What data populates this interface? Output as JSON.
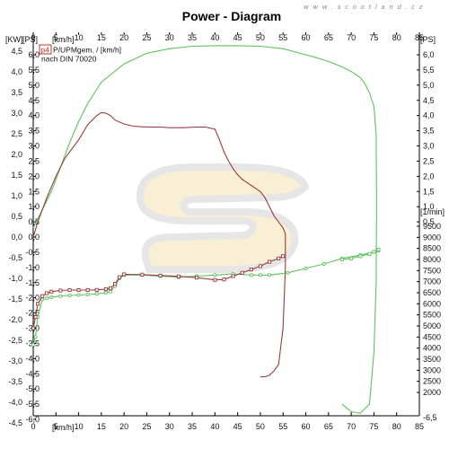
{
  "chart_data": {
    "type": "line",
    "title": "Power - Diagram",
    "watermark": "w w w . s c o o t l a n d . c z",
    "legend": {
      "badge": "p4",
      "line1": "P/UPMgem. / [km/h]",
      "line2": "nach DIN 70020",
      "placement": "top-left"
    },
    "x_axis": {
      "unit": "[km/h]",
      "ticks": [
        "0",
        "5",
        "10",
        "15",
        "20",
        "25",
        "30",
        "35",
        "40",
        "45",
        "50",
        "55",
        "60",
        "65",
        "70",
        "75",
        "80",
        "85"
      ],
      "range": [
        0,
        85
      ]
    },
    "y_left_kw": {
      "unit": "[KW]",
      "ticks": [
        "4,5",
        "4,0",
        "3,5",
        "3,0",
        "2,5",
        "2,0",
        "1,5",
        "1,0",
        "0,5",
        "0,0",
        "-0,5",
        "-1,0",
        "-1,5",
        "-2,0",
        "-2,5",
        "-3,0",
        "-3,5",
        "-4,0",
        "-4,5"
      ],
      "range": [
        -4.5,
        4.5
      ]
    },
    "y_left_ps": {
      "unit": "[PS]",
      "ticks": [
        "6,0",
        "5,5",
        "5,0",
        "4,5",
        "4,0",
        "3,5",
        "3,0",
        "2,5",
        "2,0",
        "1,5",
        "1,0",
        "0,5",
        "0,0",
        "-0,5",
        "-1,0",
        "-1,5",
        "-2,0",
        "-2,5",
        "-3,0",
        "-3,5",
        "-4,0",
        "-4,5",
        "-5,0",
        "-5,5",
        "-6,0"
      ],
      "range": [
        -6.0,
        6.0
      ]
    },
    "y_right_ps": {
      "unit": "[PS]",
      "ticks": [
        "6,0",
        "5,5",
        "5,0",
        "4,5",
        "4,0",
        "3,5",
        "3,0",
        "2,5",
        "2,0",
        "1,5",
        "1,0",
        "0,5"
      ],
      "bottom_tick": "-6,5"
    },
    "y_right_rpm": {
      "unit": "[1/min]",
      "ticks": [
        "9500",
        "9000",
        "8500",
        "8000",
        "7500",
        "7000",
        "6500",
        "6000",
        "5500",
        "5000",
        "4500",
        "4000",
        "3500",
        "3000",
        "2500",
        "2000"
      ]
    },
    "colors": {
      "green": "#5ec35e",
      "red": "#9a3c3c"
    },
    "series": [
      {
        "color": "#5ec35e",
        "axis": "ps",
        "x": [
          0,
          2,
          4,
          6,
          8,
          10,
          12,
          15,
          20,
          25,
          30,
          35,
          40,
          45,
          50,
          55,
          60,
          62,
          65,
          68,
          70,
          72,
          73,
          74,
          75,
          75.5,
          75.6,
          75.5,
          75,
          74,
          72,
          70,
          68
        ],
        "y": [
          0.3,
          0.9,
          1.5,
          2.3,
          3.1,
          3.8,
          4.4,
          5.1,
          5.7,
          6.05,
          6.2,
          6.28,
          6.3,
          6.3,
          6.28,
          6.2,
          6.0,
          5.92,
          5.78,
          5.6,
          5.45,
          5.25,
          5.05,
          4.75,
          4.3,
          3.4,
          1.0,
          -1.5,
          -3.8,
          -5.5,
          -5.8,
          -5.75,
          -5.5
        ]
      },
      {
        "color": "#9a3c3c",
        "axis": "ps",
        "x": [
          0,
          1,
          3,
          5,
          7,
          10,
          12,
          14,
          15,
          16,
          17,
          18,
          20,
          22,
          24,
          26,
          28,
          30,
          33,
          36,
          38,
          40,
          41,
          42,
          43,
          44,
          45,
          46,
          47,
          48,
          49,
          50,
          51,
          52,
          53,
          54,
          55,
          55.5,
          55.5,
          55,
          54,
          53,
          52,
          51,
          50
        ],
        "y": [
          0.0,
          0.5,
          1.3,
          2.0,
          2.6,
          3.2,
          3.7,
          4.0,
          4.1,
          4.08,
          4.0,
          3.85,
          3.72,
          3.65,
          3.63,
          3.62,
          3.62,
          3.6,
          3.6,
          3.62,
          3.62,
          3.55,
          3.2,
          2.8,
          2.5,
          2.25,
          2.05,
          1.9,
          1.8,
          1.7,
          1.6,
          1.5,
          1.3,
          1.0,
          0.7,
          0.5,
          0.3,
          0.1,
          -1.0,
          -3.0,
          -4.2,
          -4.4,
          -4.55,
          -4.6,
          -4.6
        ]
      },
      {
        "color": "#5ec35e",
        "axis": "rpm",
        "markers": "circle",
        "x": [
          0,
          0.5,
          1,
          2,
          3,
          4,
          6,
          8,
          10,
          12,
          14,
          16,
          17,
          18,
          19,
          20,
          24,
          28,
          32,
          36,
          40,
          44,
          48,
          50,
          52,
          56,
          60,
          64,
          68,
          72,
          75,
          76
        ],
        "y": [
          4150,
          4500,
          5400,
          6200,
          6250,
          6300,
          6350,
          6380,
          6400,
          6420,
          6450,
          6500,
          6550,
          6800,
          7150,
          7300,
          7300,
          7250,
          7200,
          7250,
          7300,
          7350,
          7300,
          7300,
          7300,
          7400,
          7600,
          7800,
          8050,
          8200,
          8350,
          8400
        ]
      },
      {
        "color": "#9a3c3c",
        "axis": "rpm",
        "markers": "square",
        "x": [
          0,
          0.5,
          1,
          2,
          3,
          4,
          6,
          8,
          10,
          12,
          14,
          16,
          17,
          18,
          19,
          20,
          24,
          28,
          32,
          36,
          40,
          42,
          44,
          46,
          48,
          50,
          52,
          54,
          55
        ],
        "y": [
          4900,
          5400,
          6000,
          6350,
          6480,
          6550,
          6600,
          6620,
          6620,
          6620,
          6630,
          6660,
          6700,
          6900,
          7200,
          7330,
          7320,
          7280,
          7240,
          7180,
          7080,
          7100,
          7250,
          7400,
          7550,
          7700,
          7900,
          8050,
          8150
        ]
      },
      {
        "color": "#5ec35e",
        "axis": "rpm",
        "markers": "square",
        "x": [
          68,
          70,
          72,
          74,
          75,
          76
        ],
        "y": [
          8000,
          8050,
          8150,
          8250,
          8350,
          8450
        ]
      }
    ]
  }
}
